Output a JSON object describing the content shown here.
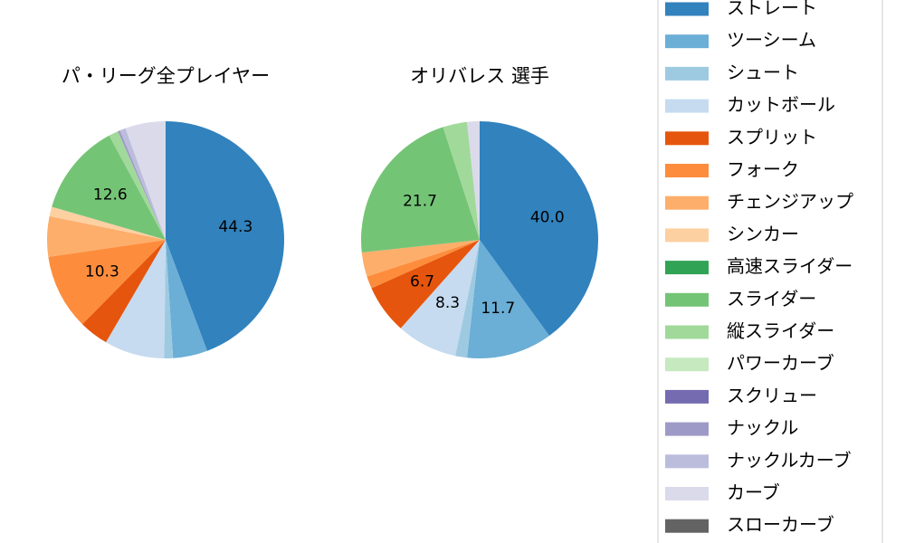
{
  "chart_data": [
    {
      "type": "pie",
      "title": "パ・リーグ全プレイヤー",
      "categories": [
        "ストレート",
        "ツーシーム",
        "シュート",
        "カットボール",
        "スプリット",
        "フォーク",
        "チェンジアップ",
        "シンカー",
        "高速スライダー",
        "スライダー",
        "縦スライダー",
        "パワーカーブ",
        "スクリュー",
        "ナックル",
        "ナックルカーブ",
        "カーブ",
        "スローカーブ"
      ],
      "values": [
        44.3,
        4.7,
        1.2,
        8.2,
        4.0,
        10.3,
        5.5,
        1.3,
        0,
        12.6,
        1.3,
        0,
        0,
        0.3,
        0.8,
        5.5,
        0
      ],
      "value_labels": [
        "44.3",
        null,
        null,
        null,
        null,
        "10.3",
        null,
        null,
        null,
        "12.6",
        null,
        null,
        null,
        null,
        null,
        null,
        null
      ],
      "colors": [
        "#3182bd",
        "#6baed6",
        "#9ecae1",
        "#c6dbef",
        "#e6550d",
        "#fd8d3c",
        "#fdae6b",
        "#fdd0a2",
        "#31a354",
        "#74c476",
        "#a1d99b",
        "#c7e9c0",
        "#756bb1",
        "#9e9ac8",
        "#bcbddc",
        "#dadaeb",
        "#636363"
      ]
    },
    {
      "type": "pie",
      "title": "オリバレス 選手",
      "categories": [
        "ストレート",
        "ツーシーム",
        "シュート",
        "カットボール",
        "スプリット",
        "フォーク",
        "チェンジアップ",
        "シンカー",
        "高速スライダー",
        "スライダー",
        "縦スライダー",
        "パワーカーブ",
        "スクリュー",
        "ナックル",
        "ナックルカーブ",
        "カーブ",
        "スローカーブ"
      ],
      "values": [
        40.0,
        11.7,
        1.6,
        8.3,
        6.7,
        1.7,
        3.3,
        0,
        0,
        21.7,
        3.3,
        0,
        0,
        0,
        0,
        1.7,
        0
      ],
      "value_labels": [
        "40.0",
        "11.7",
        null,
        "8.3",
        "6.7",
        null,
        null,
        null,
        null,
        "21.7",
        null,
        null,
        null,
        null,
        null,
        null,
        null
      ],
      "colors": [
        "#3182bd",
        "#6baed6",
        "#9ecae1",
        "#c6dbef",
        "#e6550d",
        "#fd8d3c",
        "#fdae6b",
        "#fdd0a2",
        "#31a354",
        "#74c476",
        "#a1d99b",
        "#c7e9c0",
        "#756bb1",
        "#9e9ac8",
        "#bcbddc",
        "#dadaeb",
        "#636363"
      ]
    }
  ]
}
